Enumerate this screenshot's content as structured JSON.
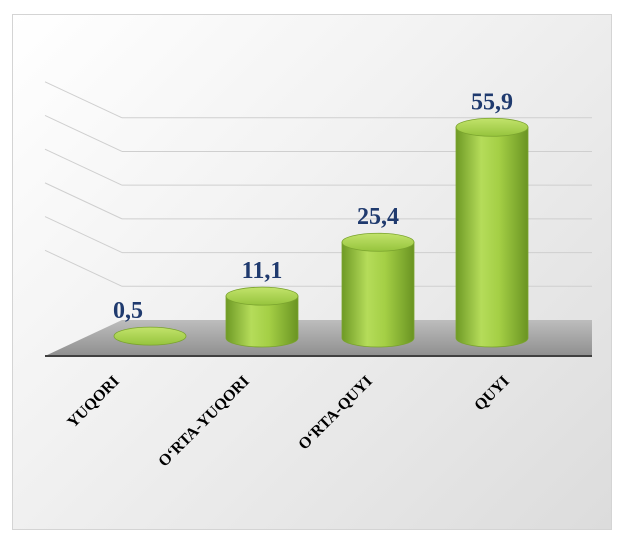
{
  "chart_data": {
    "type": "bar",
    "style": "3d-cylinder",
    "categories": [
      "YUQORI",
      "O‘RTA-YUQORI",
      "O‘RTA-QUYI",
      "QUYI"
    ],
    "values": [
      0.5,
      11.1,
      25.4,
      55.9
    ],
    "value_labels": [
      "0,5",
      "11,1",
      "25,4",
      "55,9"
    ],
    "title": "",
    "xlabel": "",
    "ylabel": "",
    "ylim": [
      0,
      60
    ],
    "grid": true,
    "legend": "none",
    "colors": {
      "bar_fill": "#92c13a",
      "bar_top": "#a9d44e",
      "value_label": "#1f3a6e",
      "floor": "#a6a6a6"
    }
  }
}
